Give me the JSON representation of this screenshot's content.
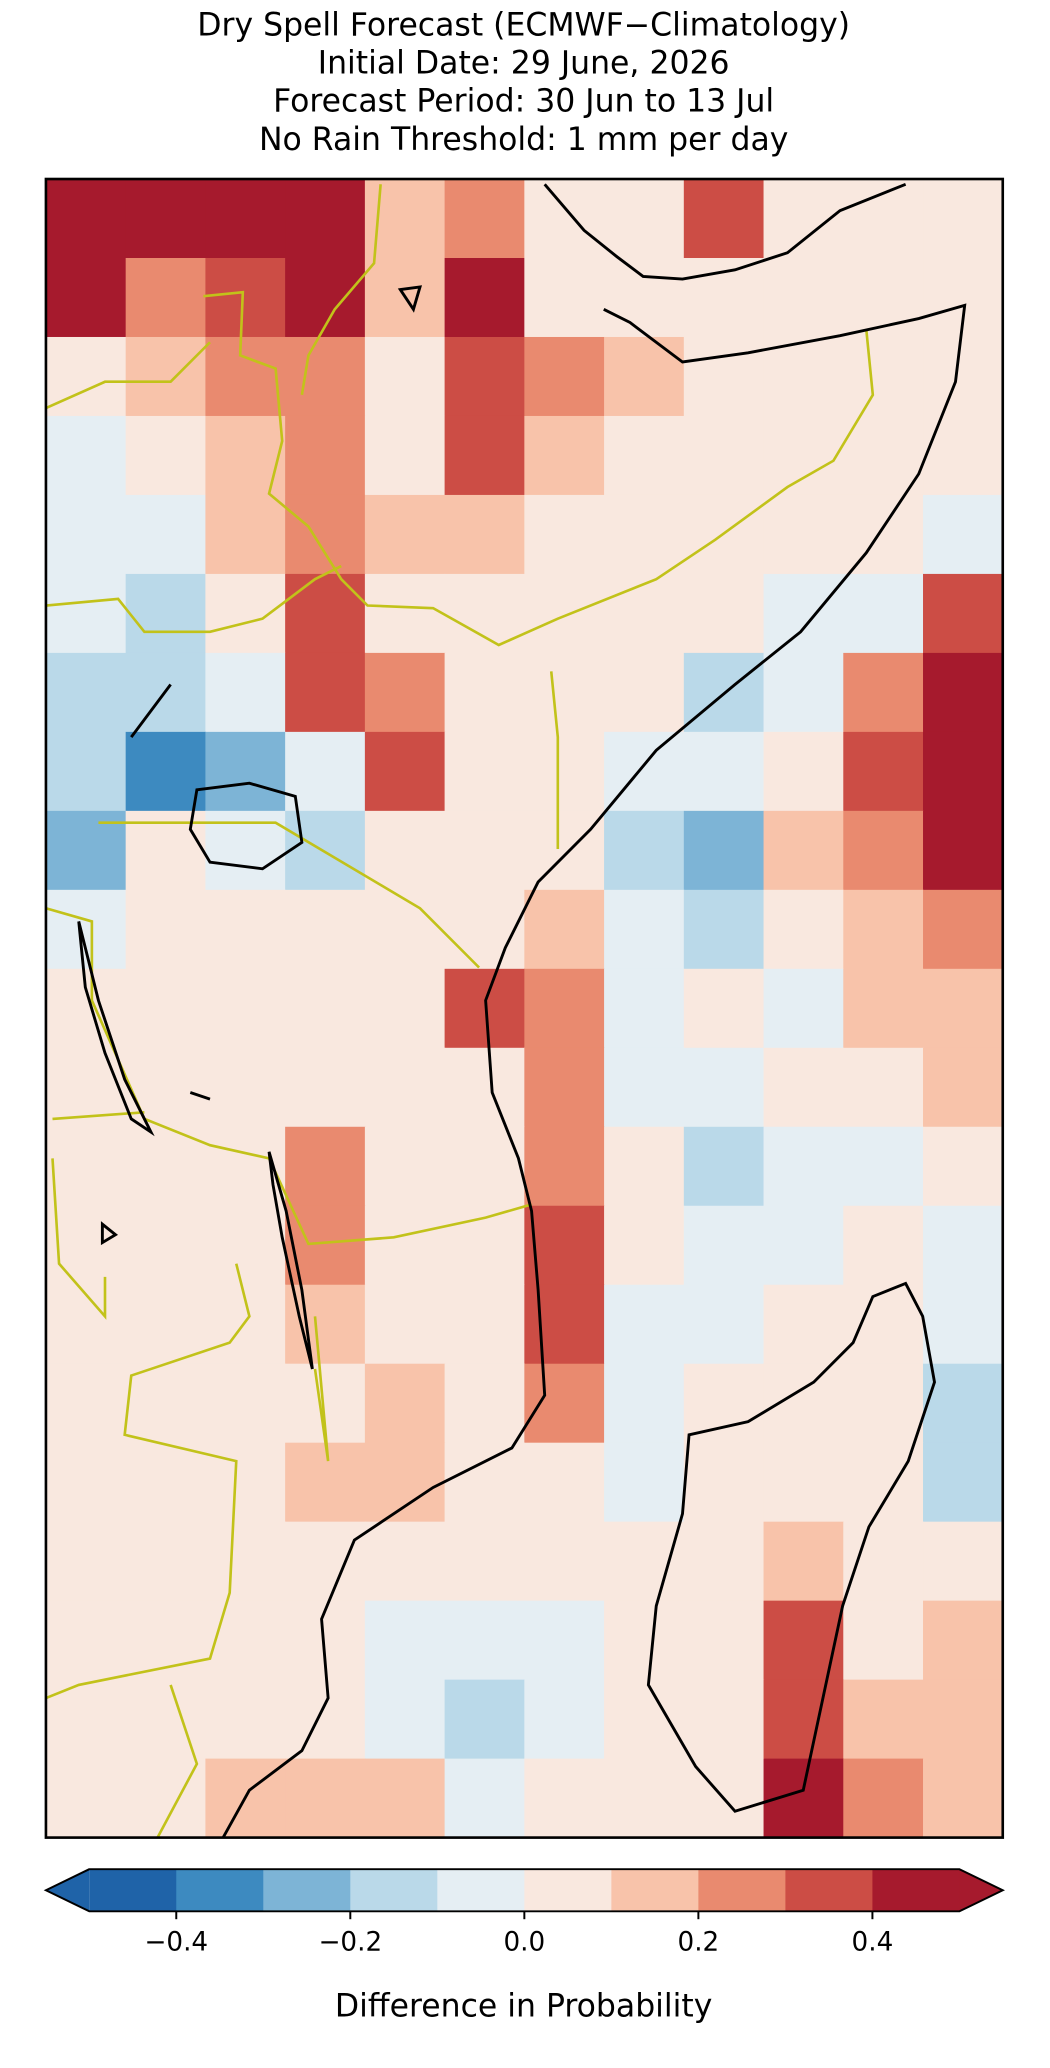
{
  "map": {
    "type": "grid-map",
    "title": [
      "Dry Spell Forecast (ECMWF−Climatology)",
      "Initial Date: 29 June, 2026",
      "Forecast Period: 30 Jun to 13 Jul",
      "No Rain Threshold: 1 mm per day"
    ],
    "values": [
      [
        0.45,
        0.45,
        0.45,
        0.45,
        0.15,
        0.25,
        0.05,
        0.05,
        0.35,
        0.05,
        0.05,
        0.05
      ],
      [
        0.45,
        0.25,
        0.35,
        0.45,
        0.15,
        0.45,
        0.05,
        0.05,
        0.05,
        0.05,
        0.05,
        0.05
      ],
      [
        0.05,
        0.15,
        0.25,
        0.25,
        0.05,
        0.35,
        0.25,
        0.15,
        0.05,
        0.05,
        0.05,
        0.05
      ],
      [
        -0.05,
        0.05,
        0.15,
        0.25,
        0.05,
        0.35,
        0.15,
        0.05,
        0.05,
        0.05,
        0.05,
        0.05
      ],
      [
        -0.05,
        -0.05,
        0.15,
        0.25,
        0.15,
        0.15,
        0.05,
        0.05,
        0.05,
        0.05,
        0.05,
        -0.05
      ],
      [
        -0.05,
        -0.15,
        0.05,
        0.35,
        0.05,
        0.05,
        0.05,
        0.05,
        0.05,
        -0.05,
        -0.05,
        0.35
      ],
      [
        -0.15,
        -0.15,
        -0.05,
        0.35,
        0.25,
        0.05,
        0.05,
        0.05,
        -0.15,
        -0.05,
        0.25,
        0.45
      ],
      [
        -0.15,
        -0.35,
        -0.25,
        -0.05,
        0.35,
        0.05,
        0.05,
        -0.05,
        -0.05,
        0.05,
        0.35,
        0.45
      ],
      [
        -0.25,
        0.05,
        -0.05,
        -0.15,
        0.05,
        0.05,
        0.05,
        -0.15,
        -0.25,
        0.15,
        0.25,
        0.45
      ],
      [
        -0.05,
        0.05,
        0.05,
        0.05,
        0.05,
        0.05,
        0.15,
        -0.05,
        -0.15,
        0.05,
        0.15,
        0.25
      ],
      [
        0.05,
        0.05,
        0.05,
        0.05,
        0.05,
        0.35,
        0.25,
        -0.05,
        0.05,
        -0.05,
        0.15,
        0.15
      ],
      [
        0.05,
        0.05,
        0.05,
        0.05,
        0.05,
        0.05,
        0.25,
        -0.05,
        -0.05,
        0.05,
        0.05,
        0.15
      ],
      [
        0.05,
        0.05,
        0.05,
        0.25,
        0.05,
        0.05,
        0.25,
        0.05,
        -0.15,
        -0.05,
        -0.05,
        0.05
      ],
      [
        0.05,
        0.05,
        0.05,
        0.25,
        0.05,
        0.05,
        0.35,
        0.05,
        -0.05,
        -0.05,
        0.05,
        -0.05
      ],
      [
        0.05,
        0.05,
        0.05,
        0.15,
        0.05,
        0.05,
        0.35,
        -0.05,
        -0.05,
        0.05,
        0.05,
        -0.05
      ],
      [
        0.05,
        0.05,
        0.05,
        0.05,
        0.15,
        0.05,
        0.25,
        -0.05,
        0.05,
        0.05,
        0.05,
        -0.15
      ],
      [
        0.05,
        0.05,
        0.05,
        0.15,
        0.15,
        0.05,
        0.05,
        -0.05,
        0.05,
        0.05,
        0.05,
        -0.15
      ],
      [
        0.05,
        0.05,
        0.05,
        0.05,
        0.05,
        0.05,
        0.05,
        0.05,
        0.05,
        0.15,
        0.05,
        0.05
      ],
      [
        0.05,
        0.05,
        0.05,
        0.05,
        -0.05,
        -0.05,
        -0.05,
        0.05,
        0.05,
        0.35,
        0.05,
        0.15
      ],
      [
        0.05,
        0.05,
        0.05,
        0.05,
        -0.05,
        -0.15,
        -0.05,
        0.05,
        0.05,
        0.35,
        0.15,
        0.15
      ],
      [
        0.05,
        0.05,
        0.15,
        0.15,
        0.15,
        -0.05,
        0.05,
        0.05,
        0.05,
        0.45,
        0.25,
        0.15
      ]
    ],
    "colorbar": {
      "label": "Difference in Probability",
      "levels": [
        -0.5,
        -0.4,
        -0.3,
        -0.2,
        -0.1,
        0,
        0.1,
        0.2,
        0.3,
        0.4,
        0.5
      ],
      "colors": [
        "#1f63a8",
        "#3d8ac0",
        "#7db4d6",
        "#bad9e9",
        "#e5eef3",
        "#f9e8df",
        "#f8c3aa",
        "#e98a6f",
        "#cc4d45",
        "#a61a2d"
      ],
      "ticks": [
        {
          "value": -0.4,
          "label": "−0.4"
        },
        {
          "value": -0.2,
          "label": "−0.2"
        },
        {
          "value": 0,
          "label": "0.0"
        },
        0.2,
        0.4
      ]
    }
  }
}
